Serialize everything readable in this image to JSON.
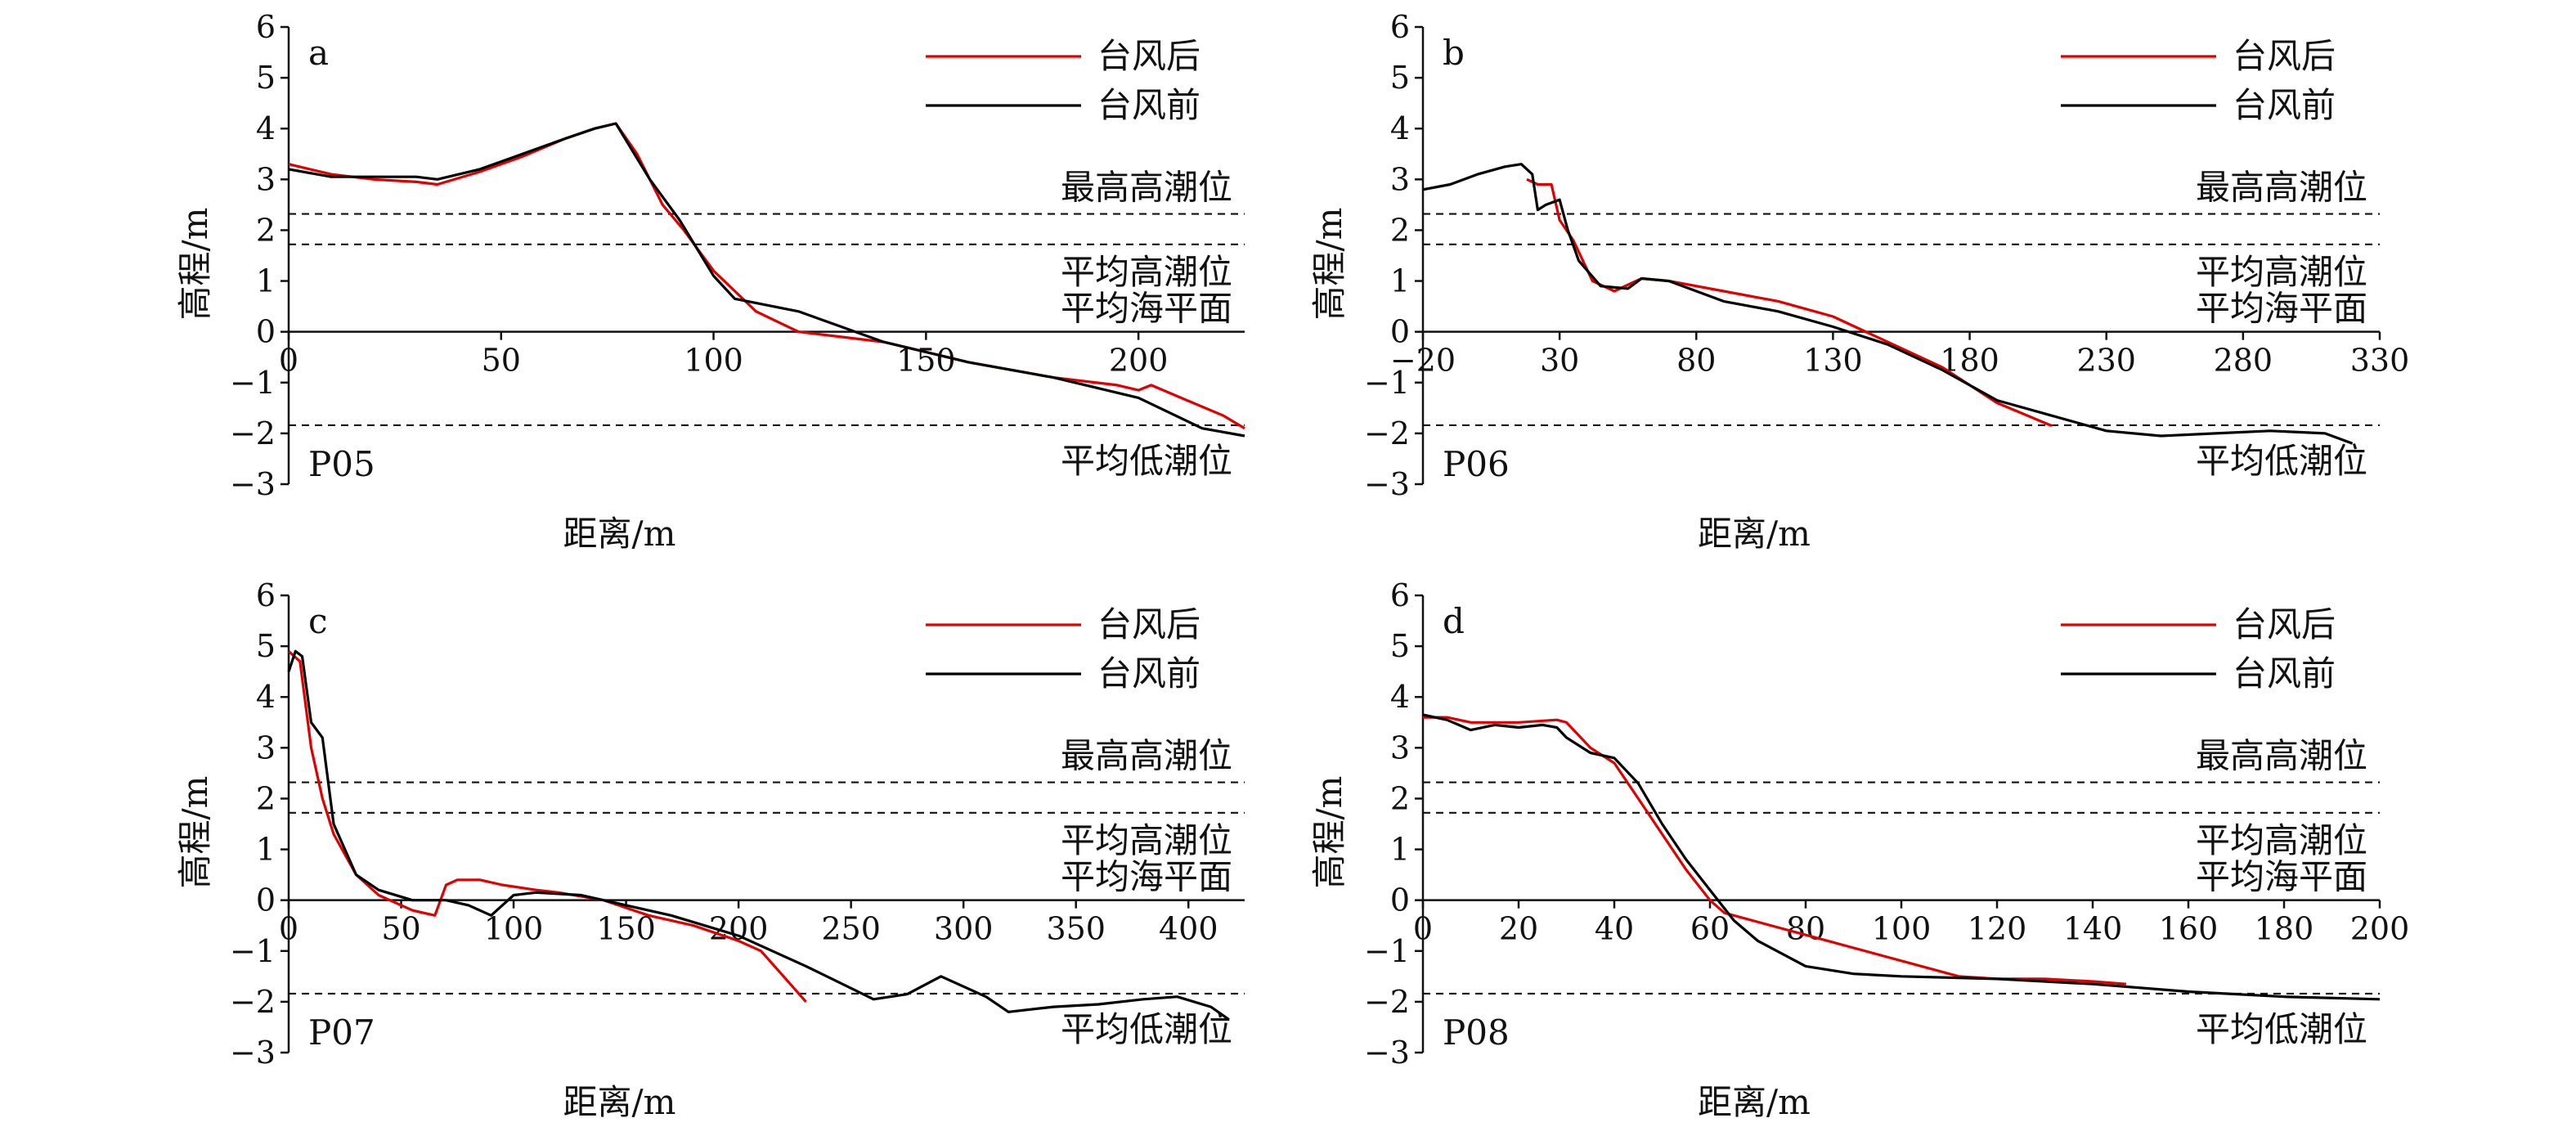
{
  "colors": {
    "after": "#e00000",
    "before": "#000000"
  },
  "chart_data": [
    {
      "type": "line",
      "panel_letter": "a",
      "profile": "P05",
      "xlabel": "距离/m",
      "ylabel": "高程/m",
      "xlim": [
        0,
        225
      ],
      "ylim": [
        -3,
        6
      ],
      "xticks": [
        0,
        50,
        100,
        150,
        200
      ],
      "yticks": [
        -3,
        -2,
        -1,
        0,
        1,
        2,
        3,
        4,
        5,
        6
      ],
      "grid": false,
      "legend_position": "top-right",
      "reference_lines": [
        {
          "label": "最高高潮位",
          "y": 2.32
        },
        {
          "label": "平均高潮位",
          "y": 1.72
        },
        {
          "label": "平均海平面",
          "y": 0.0
        },
        {
          "label": "平均低潮位",
          "y": -1.84
        }
      ],
      "series": [
        {
          "name": "台风后",
          "color": "#e00000",
          "x": [
            0,
            10,
            20,
            30,
            35,
            45,
            55,
            65,
            72,
            77,
            82,
            88,
            93,
            100,
            110,
            120,
            140,
            160,
            180,
            195,
            200,
            203,
            210,
            220,
            225
          ],
          "y": [
            3.3,
            3.1,
            3.0,
            2.95,
            2.9,
            3.15,
            3.45,
            3.8,
            4.0,
            4.1,
            3.5,
            2.5,
            2.0,
            1.2,
            0.4,
            0.0,
            -0.2,
            -0.6,
            -0.9,
            -1.05,
            -1.15,
            -1.05,
            -1.3,
            -1.65,
            -1.9
          ]
        },
        {
          "name": "台风前",
          "color": "#000000",
          "x": [
            0,
            10,
            20,
            30,
            35,
            45,
            55,
            65,
            72,
            77,
            85,
            92,
            100,
            105,
            120,
            140,
            160,
            180,
            200,
            215,
            225
          ],
          "y": [
            3.2,
            3.05,
            3.05,
            3.05,
            3.0,
            3.2,
            3.5,
            3.8,
            4.0,
            4.1,
            3.0,
            2.2,
            1.1,
            0.65,
            0.4,
            -0.2,
            -0.6,
            -0.9,
            -1.3,
            -1.9,
            -2.05
          ]
        }
      ]
    },
    {
      "type": "line",
      "panel_letter": "b",
      "profile": "P06",
      "xlabel": "距离/m",
      "ylabel": "高程/m",
      "xlim": [
        -20,
        330
      ],
      "ylim": [
        -3,
        6
      ],
      "xticks": [
        -20,
        30,
        80,
        130,
        180,
        230,
        280,
        330
      ],
      "yticks": [
        -3,
        -2,
        -1,
        0,
        1,
        2,
        3,
        4,
        5,
        6
      ],
      "grid": false,
      "legend_position": "top-right",
      "reference_lines": [
        {
          "label": "最高高潮位",
          "y": 2.32
        },
        {
          "label": "平均高潮位",
          "y": 1.72
        },
        {
          "label": "平均海平面",
          "y": 0.0
        },
        {
          "label": "平均低潮位",
          "y": -1.84
        }
      ],
      "series": [
        {
          "name": "台风后",
          "color": "#e00000",
          "x": [
            18,
            22,
            27,
            30,
            35,
            42,
            50,
            60,
            70,
            90,
            110,
            130,
            150,
            170,
            190,
            210
          ],
          "y": [
            3.0,
            2.9,
            2.9,
            2.2,
            1.8,
            1.0,
            0.8,
            1.05,
            1.0,
            0.8,
            0.6,
            0.3,
            -0.2,
            -0.7,
            -1.4,
            -1.85
          ]
        },
        {
          "name": "台风前",
          "color": "#000000",
          "x": [
            -20,
            -10,
            0,
            10,
            16,
            20,
            22,
            25,
            30,
            33,
            37,
            45,
            55,
            60,
            70,
            90,
            110,
            130,
            150,
            170,
            190,
            210,
            230,
            250,
            270,
            290,
            310,
            320
          ],
          "y": [
            2.8,
            2.9,
            3.1,
            3.25,
            3.3,
            3.1,
            2.4,
            2.5,
            2.6,
            2.0,
            1.4,
            0.9,
            0.85,
            1.05,
            1.0,
            0.6,
            0.4,
            0.1,
            -0.25,
            -0.75,
            -1.35,
            -1.65,
            -1.95,
            -2.05,
            -2.0,
            -1.95,
            -2.0,
            -2.2
          ]
        }
      ]
    },
    {
      "type": "line",
      "panel_letter": "c",
      "profile": "P07",
      "xlabel": "距离/m",
      "ylabel": "高程/m",
      "xlim": [
        0,
        425
      ],
      "ylim": [
        -3,
        6
      ],
      "xticks": [
        0,
        50,
        100,
        150,
        200,
        250,
        300,
        350,
        400
      ],
      "yticks": [
        -3,
        -2,
        -1,
        0,
        1,
        2,
        3,
        4,
        5,
        6
      ],
      "grid": false,
      "legend_position": "top-right",
      "reference_lines": [
        {
          "label": "最高高潮位",
          "y": 2.32
        },
        {
          "label": "平均高潮位",
          "y": 1.72
        },
        {
          "label": "平均海平面",
          "y": 0.0
        },
        {
          "label": "平均低潮位",
          "y": -1.84
        }
      ],
      "series": [
        {
          "name": "台风后",
          "color": "#e00000",
          "x": [
            0,
            5,
            10,
            15,
            20,
            30,
            40,
            55,
            65,
            70,
            75,
            85,
            95,
            110,
            120,
            140,
            160,
            180,
            200,
            210,
            220,
            230
          ],
          "y": [
            4.9,
            4.7,
            3.0,
            2.0,
            1.3,
            0.5,
            0.1,
            -0.2,
            -0.3,
            0.3,
            0.4,
            0.4,
            0.3,
            0.2,
            0.15,
            0.0,
            -0.3,
            -0.5,
            -0.8,
            -1.0,
            -1.5,
            -2.0
          ]
        },
        {
          "name": "台风前",
          "color": "#000000",
          "x": [
            0,
            3,
            6,
            10,
            15,
            20,
            30,
            40,
            55,
            70,
            80,
            90,
            95,
            100,
            110,
            130,
            150,
            170,
            200,
            230,
            260,
            275,
            290,
            310,
            320,
            340,
            360,
            380,
            395,
            410,
            418
          ],
          "y": [
            4.5,
            4.9,
            4.8,
            3.5,
            3.2,
            1.5,
            0.5,
            0.2,
            0.0,
            0.0,
            -0.1,
            -0.3,
            -0.1,
            0.1,
            0.15,
            0.1,
            -0.1,
            -0.3,
            -0.7,
            -1.3,
            -1.95,
            -1.85,
            -1.5,
            -1.9,
            -2.2,
            -2.1,
            -2.05,
            -1.95,
            -1.9,
            -2.1,
            -2.35
          ]
        }
      ]
    },
    {
      "type": "line",
      "panel_letter": "d",
      "profile": "P08",
      "xlabel": "距离/m",
      "ylabel": "高程/m",
      "xlim": [
        0,
        200
      ],
      "ylim": [
        -3,
        6
      ],
      "xticks": [
        0,
        20,
        40,
        60,
        80,
        100,
        120,
        140,
        160,
        180,
        200
      ],
      "yticks": [
        -3,
        -2,
        -1,
        0,
        1,
        2,
        3,
        4,
        5,
        6
      ],
      "grid": false,
      "legend_position": "top-right",
      "reference_lines": [
        {
          "label": "最高高潮位",
          "y": 2.32
        },
        {
          "label": "平均高潮位",
          "y": 1.72
        },
        {
          "label": "平均海平面",
          "y": 0.0
        },
        {
          "label": "平均低潮位",
          "y": -1.84
        }
      ],
      "series": [
        {
          "name": "台风后",
          "color": "#e00000",
          "x": [
            0,
            5,
            10,
            20,
            28,
            30,
            35,
            40,
            45,
            50,
            55,
            60,
            63,
            112,
            120,
            130,
            140,
            147
          ],
          "y": [
            3.6,
            3.6,
            3.5,
            3.5,
            3.55,
            3.5,
            3.0,
            2.7,
            2.0,
            1.3,
            0.6,
            0.0,
            -0.25,
            -1.5,
            -1.55,
            -1.55,
            -1.6,
            -1.65
          ]
        },
        {
          "name": "台风前",
          "color": "#000000",
          "x": [
            0,
            5,
            10,
            15,
            20,
            25,
            28,
            30,
            35,
            40,
            45,
            50,
            55,
            60,
            65,
            70,
            80,
            90,
            100,
            120,
            140,
            160,
            180,
            200
          ],
          "y": [
            3.65,
            3.55,
            3.35,
            3.45,
            3.4,
            3.45,
            3.4,
            3.2,
            2.9,
            2.8,
            2.3,
            1.5,
            0.8,
            0.2,
            -0.4,
            -0.8,
            -1.3,
            -1.45,
            -1.5,
            -1.55,
            -1.65,
            -1.8,
            -1.9,
            -1.95
          ]
        }
      ]
    }
  ]
}
